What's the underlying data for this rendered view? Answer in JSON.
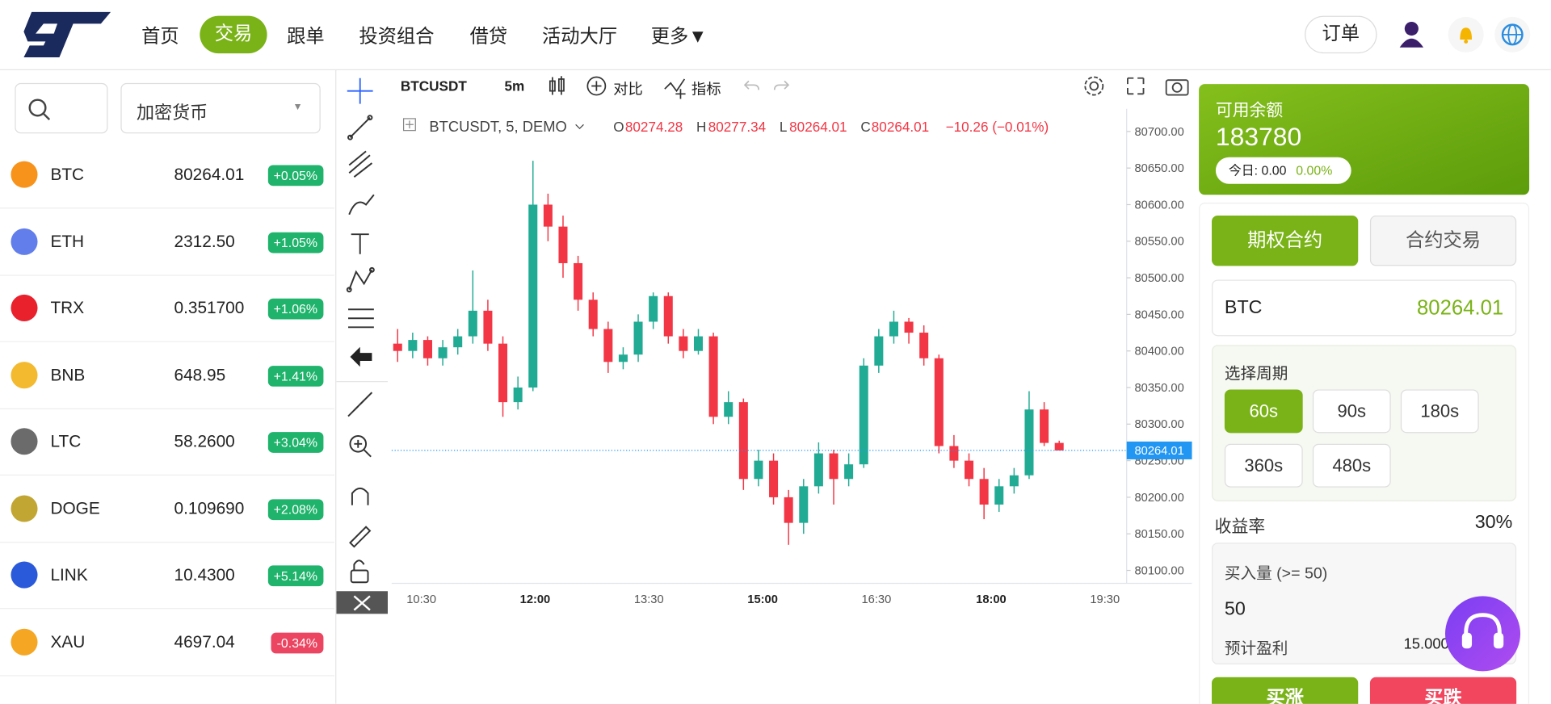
{
  "nav": {
    "items": [
      "首页",
      "交易",
      "跟单",
      "投资组合",
      "借贷",
      "活动大厅",
      "更多▼"
    ],
    "orders": "订单"
  },
  "sidebar": {
    "category": "加密货币",
    "coins": [
      {
        "name": "BTC",
        "price": "80264.01",
        "change": "+0.05%"
      },
      {
        "name": "ETH",
        "price": "2312.50",
        "change": "+1.05%"
      },
      {
        "name": "TRX",
        "price": "0.351700",
        "change": "+1.06%"
      },
      {
        "name": "BNB",
        "price": "648.95",
        "change": "+1.41%"
      },
      {
        "name": "LTC",
        "price": "58.2600",
        "change": "+3.04%"
      },
      {
        "name": "DOGE",
        "price": "0.109690",
        "change": "+2.08%"
      },
      {
        "name": "LINK",
        "price": "10.4300",
        "change": "+5.14%"
      },
      {
        "name": "XAU",
        "price": "4697.04",
        "change": "-0.34%"
      }
    ]
  },
  "toolbar": {
    "symbol": "BTCUSDT",
    "interval": "5m",
    "compare": "对比",
    "indicators": "指标"
  },
  "chart_data": {
    "type": "candlestick",
    "legend": {
      "title": "BTCUSDT, 5, DEMO",
      "o_label": "O",
      "o": "80274.28",
      "h_label": "H",
      "h": "80277.34",
      "l_label": "L",
      "l": "80264.01",
      "c_label": "C",
      "c": "80264.01",
      "change": "−10.26 (−0.01%)"
    },
    "up_color": "#22ab94",
    "down_color": "#f23645",
    "ylim": [
      80100,
      80700
    ],
    "yticks": [
      {
        "value": 80700,
        "label": "80700.00"
      },
      {
        "value": 80650,
        "label": "80650.00"
      },
      {
        "value": 80600,
        "label": "80600.00"
      },
      {
        "value": 80550,
        "label": "80550.00"
      },
      {
        "value": 80500,
        "label": "80500.00"
      },
      {
        "value": 80450,
        "label": "80450.00"
      },
      {
        "value": 80400,
        "label": "80400.00"
      },
      {
        "value": 80350,
        "label": "80350.00"
      },
      {
        "value": 80300,
        "label": "80300.00"
      },
      {
        "value": 80250,
        "label": "80250.00"
      },
      {
        "value": 80200,
        "label": "80200.00"
      },
      {
        "value": 80150,
        "label": "80150.00"
      },
      {
        "value": 80100,
        "label": "80100.00"
      }
    ],
    "last_price": {
      "value": 80264.01,
      "label": "80264.01"
    },
    "time_labels": [
      "10:30",
      "12:00",
      "13:30",
      "15:00",
      "16:30",
      "18:00",
      "19:30"
    ],
    "candles": [
      [
        80410,
        80430,
        80385,
        80400
      ],
      [
        80400,
        80425,
        80390,
        80415
      ],
      [
        80415,
        80420,
        80380,
        80390
      ],
      [
        80390,
        80415,
        80380,
        80405
      ],
      [
        80405,
        80430,
        80395,
        80420
      ],
      [
        80420,
        80510,
        80410,
        80455
      ],
      [
        80455,
        80470,
        80400,
        80410
      ],
      [
        80410,
        80420,
        80310,
        80330
      ],
      [
        80330,
        80365,
        80320,
        80350
      ],
      [
        80350,
        80660,
        80345,
        80600
      ],
      [
        80600,
        80615,
        80550,
        80570
      ],
      [
        80570,
        80585,
        80500,
        80520
      ],
      [
        80520,
        80530,
        80455,
        80470
      ],
      [
        80470,
        80480,
        80420,
        80430
      ],
      [
        80430,
        80440,
        80370,
        80385
      ],
      [
        80385,
        80405,
        80375,
        80395
      ],
      [
        80395,
        80450,
        80385,
        80440
      ],
      [
        80440,
        80480,
        80430,
        80475
      ],
      [
        80475,
        80480,
        80410,
        80420
      ],
      [
        80420,
        80430,
        80390,
        80400
      ],
      [
        80400,
        80430,
        80395,
        80420
      ],
      [
        80420,
        80425,
        80300,
        80310
      ],
      [
        80310,
        80345,
        80300,
        80330
      ],
      [
        80330,
        80335,
        80210,
        80225
      ],
      [
        80225,
        80265,
        80215,
        80250
      ],
      [
        80250,
        80260,
        80190,
        80200
      ],
      [
        80200,
        80210,
        80135,
        80165
      ],
      [
        80165,
        80225,
        80150,
        80215
      ],
      [
        80215,
        80275,
        80205,
        80260
      ],
      [
        80260,
        80265,
        80190,
        80225
      ],
      [
        80225,
        80260,
        80215,
        80245
      ],
      [
        80245,
        80390,
        80240,
        80380
      ],
      [
        80380,
        80430,
        80370,
        80420
      ],
      [
        80420,
        80455,
        80410,
        80440
      ],
      [
        80440,
        80445,
        80410,
        80425
      ],
      [
        80425,
        80435,
        80380,
        80390
      ],
      [
        80390,
        80395,
        80260,
        80270
      ],
      [
        80270,
        80285,
        80240,
        80250
      ],
      [
        80250,
        80260,
        80215,
        80225
      ],
      [
        80225,
        80240,
        80170,
        80190
      ],
      [
        80190,
        80225,
        80180,
        80215
      ],
      [
        80215,
        80240,
        80205,
        80230
      ],
      [
        80230,
        80345,
        80225,
        80320
      ],
      [
        80320,
        80330,
        80270,
        80274.28
      ],
      [
        80274.28,
        80277.34,
        80264.01,
        80264.01
      ]
    ]
  },
  "account": {
    "balance_label": "可用余额",
    "balance": "183780",
    "today": "今日: 0.00",
    "today_pct": "0.00%",
    "tabs": [
      "期权合约",
      "合约交易"
    ],
    "symbol": "BTC",
    "price": "80264.01",
    "period_label": "选择周期",
    "periods": [
      "60s",
      "90s",
      "180s",
      "360s",
      "480s"
    ],
    "yield_label": "收益率",
    "yield": "30%",
    "amount_label": "买入量 (>= 50)",
    "amount": "50",
    "profit_label": "预计盈利",
    "profit": "15.000",
    "buy_up": "买涨",
    "buy_down": "买跌"
  }
}
